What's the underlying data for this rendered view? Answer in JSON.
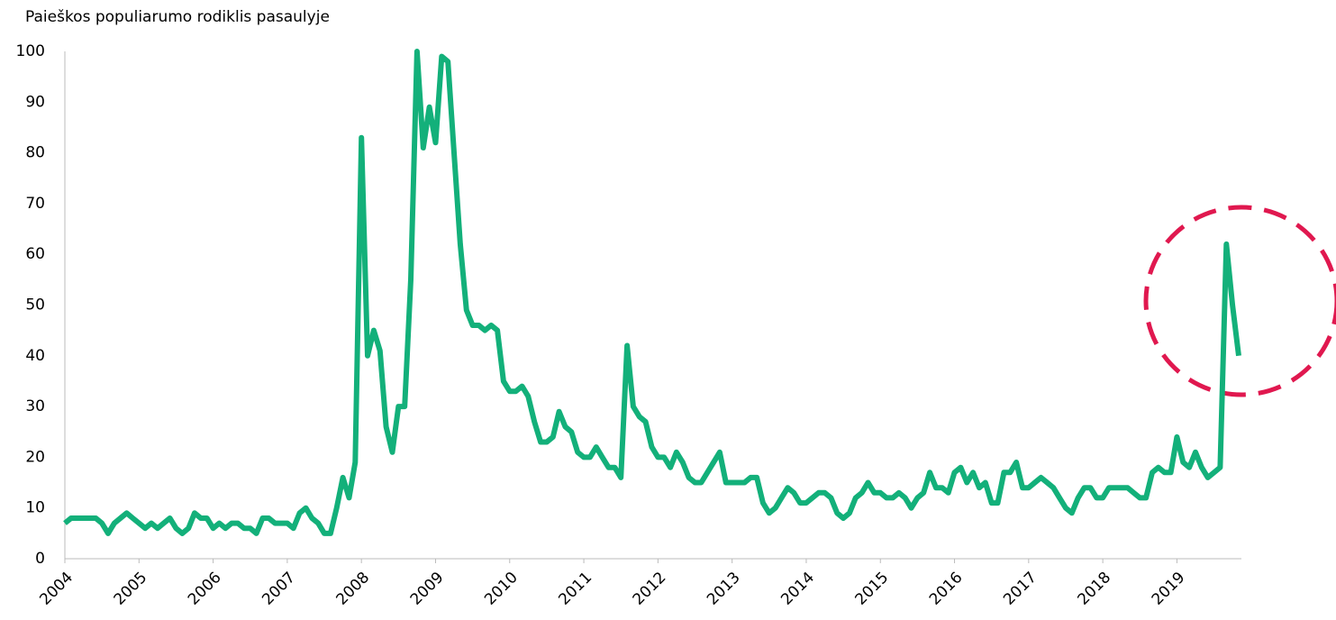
{
  "chart_data": {
    "type": "line",
    "title": "Paieškos populiarumo rodiklis pasaulyje",
    "categories": [
      "2004",
      null,
      null,
      null,
      null,
      null,
      null,
      null,
      null,
      null,
      null,
      null,
      "2005",
      null,
      null,
      null,
      null,
      null,
      null,
      null,
      null,
      null,
      null,
      null,
      "2006",
      null,
      null,
      null,
      null,
      null,
      null,
      null,
      null,
      null,
      null,
      null,
      "2007",
      null,
      null,
      null,
      null,
      null,
      null,
      null,
      null,
      null,
      null,
      null,
      "2008",
      null,
      null,
      null,
      null,
      null,
      null,
      null,
      null,
      null,
      null,
      null,
      "2009",
      null,
      null,
      null,
      null,
      null,
      null,
      null,
      null,
      null,
      null,
      null,
      "2010",
      null,
      null,
      null,
      null,
      null,
      null,
      null,
      null,
      null,
      null,
      null,
      "2011",
      null,
      null,
      null,
      null,
      null,
      null,
      null,
      null,
      null,
      null,
      null,
      "2012",
      null,
      null,
      null,
      null,
      null,
      null,
      null,
      null,
      null,
      null,
      null,
      "2013",
      null,
      null,
      null,
      null,
      null,
      null,
      null,
      null,
      null,
      null,
      null,
      "2014",
      null,
      null,
      null,
      null,
      null,
      null,
      null,
      null,
      null,
      null,
      null,
      "2015",
      null,
      null,
      null,
      null,
      null,
      null,
      null,
      null,
      null,
      null,
      null,
      "2016",
      null,
      null,
      null,
      null,
      null,
      null,
      null,
      null,
      null,
      null,
      null,
      "2017",
      null,
      null,
      null,
      null,
      null,
      null,
      null,
      null,
      null,
      null,
      null,
      "2018",
      null,
      null,
      null,
      null,
      null,
      null,
      null,
      null,
      null,
      null,
      null,
      "2019",
      null,
      null,
      null,
      null,
      null,
      null,
      null,
      null,
      null,
      null
    ],
    "values": [
      7,
      8,
      8,
      8,
      8,
      8,
      7,
      5,
      7,
      8,
      9,
      8,
      7,
      6,
      7,
      6,
      7,
      8,
      6,
      5,
      6,
      9,
      8,
      8,
      6,
      7,
      6,
      7,
      7,
      6,
      6,
      5,
      8,
      8,
      7,
      7,
      7,
      6,
      9,
      10,
      8,
      7,
      5,
      5,
      10,
      16,
      12,
      19,
      83,
      40,
      45,
      41,
      26,
      21,
      30,
      30,
      55,
      100,
      81,
      89,
      82,
      99,
      98,
      80,
      62,
      49,
      46,
      46,
      45,
      46,
      45,
      35,
      33,
      33,
      34,
      32,
      27,
      23,
      23,
      24,
      29,
      26,
      25,
      21,
      20,
      20,
      22,
      20,
      18,
      18,
      16,
      42,
      30,
      28,
      27,
      22,
      20,
      20,
      18,
      21,
      19,
      16,
      15,
      15,
      17,
      19,
      21,
      15,
      15,
      15,
      15,
      16,
      16,
      11,
      9,
      10,
      12,
      14,
      13,
      11,
      11,
      12,
      13,
      13,
      12,
      9,
      8,
      9,
      12,
      13,
      15,
      13,
      13,
      12,
      12,
      13,
      12,
      10,
      12,
      13,
      17,
      14,
      14,
      13,
      17,
      18,
      15,
      17,
      14,
      15,
      11,
      11,
      17,
      17,
      19,
      14,
      14,
      15,
      16,
      15,
      14,
      12,
      10,
      9,
      12,
      14,
      14,
      12,
      12,
      14,
      14,
      14,
      14,
      13,
      12,
      12,
      17,
      18,
      17,
      17,
      24,
      19,
      18,
      21,
      18,
      16,
      17,
      18,
      62,
      50,
      40
    ],
    "color": "#13b07a",
    "ylim": [
      0,
      100
    ],
    "yticks": [
      0,
      10,
      20,
      30,
      40,
      50,
      60,
      70,
      80,
      90,
      100
    ],
    "grid": false
  }
}
